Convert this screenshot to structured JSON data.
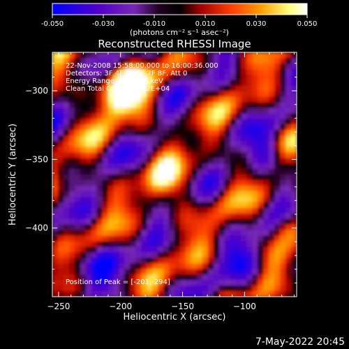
{
  "colorbar": {
    "ticks": [
      "-0.050",
      "-0.030",
      "-0.010",
      "0.010",
      "0.030",
      "0.050"
    ],
    "tick_values": [
      -0.05,
      -0.03,
      -0.01,
      0.01,
      0.03,
      0.05
    ],
    "range": [
      -0.05,
      0.05
    ],
    "units": "(photons cm⁻² s⁻¹ asec⁻²)",
    "colors": [
      "#0000ff",
      "#5000c8",
      "#7828b4",
      "#000000",
      "#b40000",
      "#ff3c00",
      "#ffaa00",
      "#ffff78",
      "#ffffff"
    ]
  },
  "chart_data": {
    "type": "heatmap",
    "title": "Reconstructed RHESSI Image",
    "xlabel": "Heliocentric X (arcsec)",
    "ylabel": "Heliocentric Y (arcsec)",
    "xlim": [
      -255,
      -58
    ],
    "ylim": [
      -450,
      -272
    ],
    "xticks": [
      -250,
      -200,
      -150,
      -100
    ],
    "yticks": [
      -300,
      -350,
      -400
    ],
    "xtick_labels": [
      "−250",
      "−200",
      "−150",
      "−100"
    ],
    "ytick_labels": [
      "−300",
      "−350",
      "−400"
    ],
    "annotations": [
      "22-Nov-2008 15:58:00.000 to 16:00:36.000",
      "Detectors: 3F 4F 5F 6F 7F 8F, Att 0",
      "Energy Range: 3.0 - 6.0 keV",
      "Clean    Total Counts: 4.22E+04"
    ],
    "peak_label": "Position of Peak = [-201,-294]",
    "peak": {
      "x": -201,
      "y": -294
    }
  },
  "footer": {
    "date": "7-May-2022 20:45"
  }
}
